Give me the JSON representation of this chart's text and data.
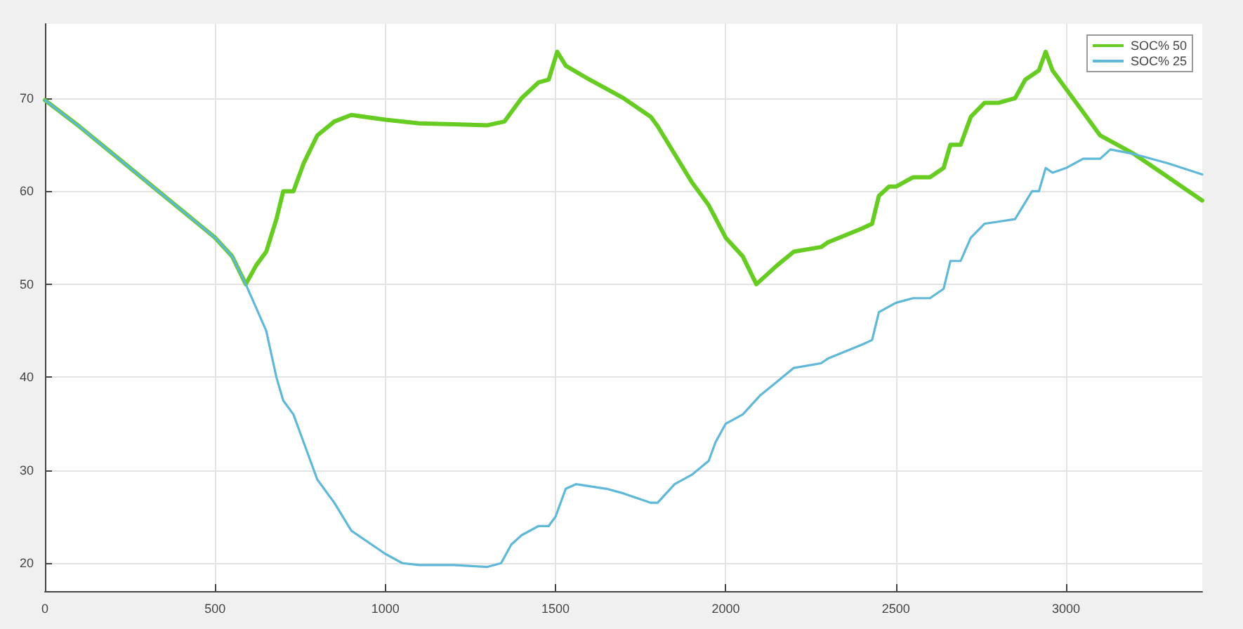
{
  "chart_data": {
    "type": "line",
    "xlim": [
      0,
      3400
    ],
    "xticks": [
      0,
      500,
      1000,
      1500,
      2000,
      2500,
      3000
    ],
    "ylim": [
      17,
      78
    ],
    "yticks": [
      20,
      30,
      40,
      50,
      60,
      70
    ],
    "grid": true,
    "legend": "top right",
    "marker": "none",
    "line_style": "solid",
    "series": [
      {
        "name": "SOC% 50",
        "color": "#66cc22",
        "x": [
          0,
          100,
          200,
          300,
          400,
          450,
          500,
          550,
          590,
          620,
          650,
          680,
          700,
          730,
          760,
          800,
          850,
          900,
          1000,
          1100,
          1200,
          1300,
          1350,
          1400,
          1450,
          1480,
          1505,
          1530,
          1600,
          1700,
          1780,
          1800,
          1850,
          1900,
          1950,
          2000,
          2050,
          2090,
          2150,
          2200,
          2280,
          2300,
          2400,
          2430,
          2450,
          2480,
          2500,
          2550,
          2600,
          2640,
          2660,
          2690,
          2720,
          2760,
          2800,
          2850,
          2880,
          2920,
          2940,
          2960,
          3000,
          3050,
          3100,
          3200,
          3300,
          3400
        ],
        "values": [
          69.8,
          67,
          64,
          61,
          58,
          56.5,
          55,
          53,
          50,
          52,
          53.5,
          57,
          60,
          60,
          63,
          66,
          67.5,
          68.2,
          67.7,
          67.3,
          67.2,
          67.1,
          67.5,
          70,
          71.7,
          72,
          75,
          73.5,
          72,
          70,
          68,
          67,
          64,
          61,
          58.5,
          55,
          53,
          50,
          52,
          53.5,
          54,
          54.5,
          56,
          56.5,
          59.5,
          60.5,
          60.5,
          61.5,
          61.5,
          62.5,
          65,
          65,
          68,
          69.5,
          69.5,
          70,
          72,
          73,
          75,
          73,
          71,
          68.5,
          66,
          64,
          61.5,
          59
        ]
      },
      {
        "name": "SOC% 25",
        "color": "#5fb8d8",
        "x": [
          0,
          100,
          200,
          300,
          400,
          450,
          500,
          550,
          590,
          650,
          680,
          700,
          730,
          760,
          800,
          850,
          900,
          1000,
          1050,
          1100,
          1200,
          1300,
          1340,
          1370,
          1400,
          1450,
          1480,
          1500,
          1530,
          1560,
          1650,
          1700,
          1780,
          1800,
          1850,
          1900,
          1950,
          1970,
          2000,
          2050,
          2100,
          2150,
          2200,
          2280,
          2300,
          2400,
          2430,
          2450,
          2500,
          2550,
          2600,
          2640,
          2660,
          2690,
          2720,
          2760,
          2850,
          2900,
          2920,
          2940,
          2960,
          3000,
          3050,
          3100,
          3130,
          3200,
          3300,
          3400
        ],
        "values": [
          69.8,
          67,
          64,
          61,
          58,
          56.5,
          55,
          53,
          50,
          45,
          40,
          37.5,
          36,
          33,
          29,
          26.5,
          23.5,
          21,
          20,
          19.8,
          19.8,
          19.6,
          20,
          22,
          23,
          24,
          24,
          25,
          28,
          28.5,
          28,
          27.5,
          26.5,
          26.5,
          28.5,
          29.5,
          31,
          33,
          35,
          36,
          38,
          39.5,
          41,
          41.5,
          42,
          43.5,
          44,
          47,
          48,
          48.5,
          48.5,
          49.5,
          52.5,
          52.5,
          55,
          56.5,
          57,
          60,
          60,
          62.5,
          62,
          62.5,
          63.5,
          63.5,
          64.5,
          64,
          63,
          61.8
        ]
      }
    ]
  }
}
